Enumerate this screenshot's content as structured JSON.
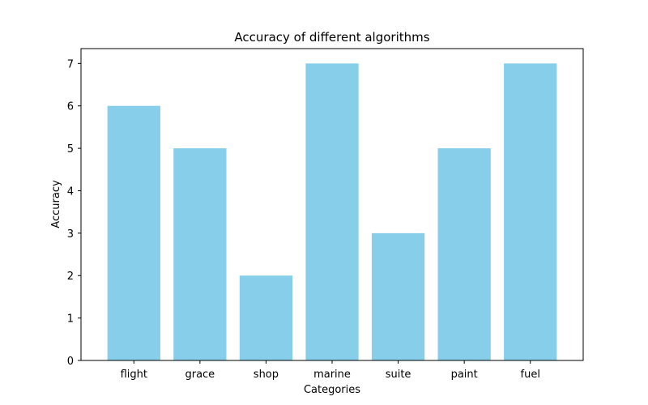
{
  "chart_data": {
    "type": "bar",
    "title": "Accuracy of different algorithms",
    "xlabel": "Categories",
    "ylabel": "Accuracy",
    "categories": [
      "flight",
      "grace",
      "shop",
      "marine",
      "suite",
      "paint",
      "fuel"
    ],
    "values": [
      6,
      5,
      2,
      7,
      3,
      5,
      7
    ],
    "ylim": [
      0,
      7
    ],
    "yticks": [
      "0",
      "1",
      "2",
      "3",
      "4",
      "5",
      "6",
      "7"
    ],
    "grid": false,
    "legend": "none",
    "bar_color": "#87CEEB"
  }
}
